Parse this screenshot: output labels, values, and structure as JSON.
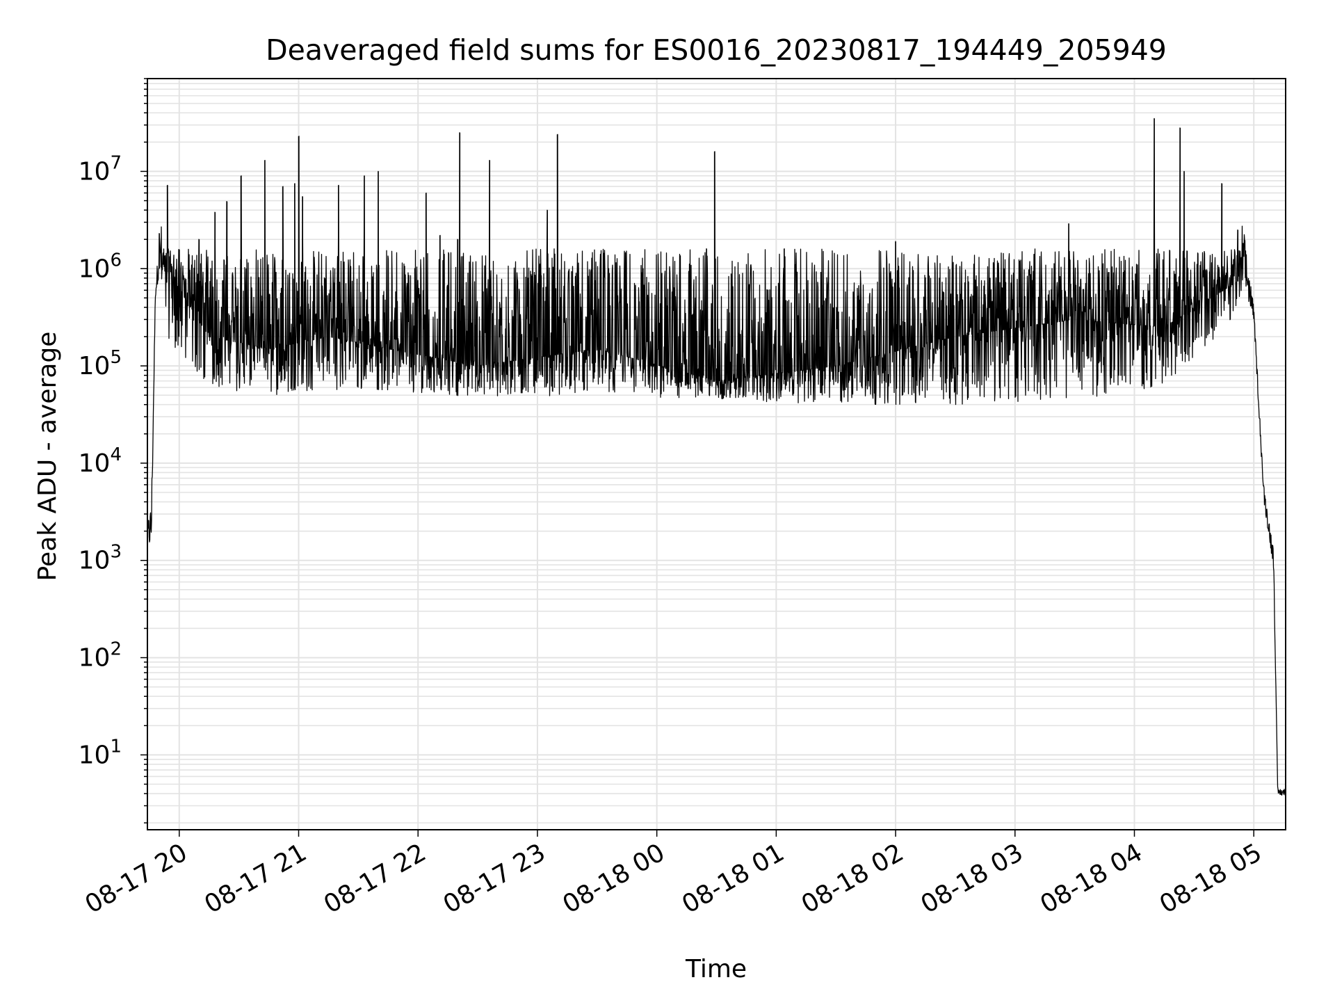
{
  "chart_data": {
    "type": "line",
    "title": "Deaveraged field sums for ES0016_20230817_194449_205949",
    "xlabel": "Time",
    "ylabel": "Peak ADU - average",
    "y_scale": "log",
    "grid": true,
    "ylim": [
      1.7,
      90000000
    ],
    "xlim": [
      "2023-08-17 19:44",
      "2023-08-18 05:16"
    ],
    "x_ticks": [
      "08-17 20",
      "08-17 21",
      "08-17 22",
      "08-17 23",
      "08-18 00",
      "08-18 01",
      "08-18 02",
      "08-18 03",
      "08-18 04",
      "08-18 05"
    ],
    "y_ticks": [
      {
        "base": "10",
        "exp": "1"
      },
      {
        "base": "10",
        "exp": "2"
      },
      {
        "base": "10",
        "exp": "3"
      },
      {
        "base": "10",
        "exp": "4"
      },
      {
        "base": "10",
        "exp": "5"
      },
      {
        "base": "10",
        "exp": "6"
      },
      {
        "base": "10",
        "exp": "7"
      }
    ],
    "series": [
      {
        "color": "#000000",
        "envelope": [
          {
            "x": "2023-08-17 19:44",
            "baseline": 1500,
            "floor": 1300,
            "peak": 2500
          },
          {
            "x": "2023-08-17 19:46",
            "baseline": 3000,
            "floor": 1300,
            "peak": 4000
          },
          {
            "x": "2023-08-17 19:48",
            "baseline": 500000,
            "floor": 500000,
            "peak": 600000
          },
          {
            "x": "2023-08-17 19:50",
            "baseline": 1000000,
            "floor": 900000,
            "peak": 2300000
          },
          {
            "x": "2023-08-17 19:55",
            "baseline": 900000,
            "floor": 180000,
            "peak": 7200000
          },
          {
            "x": "2023-08-17 20:15",
            "baseline": 200000,
            "floor": 60000,
            "peak": 5000000
          },
          {
            "x": "2023-08-17 20:45",
            "baseline": 150000,
            "floor": 50000,
            "peak": 13000000
          },
          {
            "x": "2023-08-17 21:15",
            "baseline": 200000,
            "floor": 55000,
            "peak": 7000000
          },
          {
            "x": "2023-08-17 21:45",
            "baseline": 150000,
            "floor": 55000,
            "peak": 9000000
          },
          {
            "x": "2023-08-17 22:30",
            "baseline": 100000,
            "floor": 48000,
            "peak": 13000000
          },
          {
            "x": "2023-08-17 23:30",
            "baseline": 150000,
            "floor": 50000,
            "peak": 1500000
          },
          {
            "x": "2023-08-18 00:30",
            "baseline": 70000,
            "floor": 45000,
            "peak": 16000000
          },
          {
            "x": "2023-08-18 01:30",
            "baseline": 100000,
            "floor": 40000,
            "peak": 1600000
          },
          {
            "x": "2023-08-18 02:30",
            "baseline": 200000,
            "floor": 40000,
            "peak": 1500000
          },
          {
            "x": "2023-08-18 03:30",
            "baseline": 300000,
            "floor": 45000,
            "peak": 2900000
          },
          {
            "x": "2023-08-18 04:15",
            "baseline": 250000,
            "floor": 60000,
            "peak": 35000000
          },
          {
            "x": "2023-08-18 04:50",
            "baseline": 700000,
            "floor": 300000,
            "peak": 7500000
          },
          {
            "x": "2023-08-18 04:55",
            "baseline": 800000,
            "floor": 600000,
            "peak": 2500000
          },
          {
            "x": "2023-08-18 05:00",
            "baseline": 350000,
            "floor": 300000,
            "peak": 400000
          },
          {
            "x": "2023-08-18 05:05",
            "baseline": 5000,
            "floor": 4000,
            "peak": 6000
          },
          {
            "x": "2023-08-18 05:10",
            "baseline": 1000,
            "floor": 800,
            "peak": 1300
          },
          {
            "x": "2023-08-18 05:12",
            "baseline": 4,
            "floor": 3.8,
            "peak": 4.5
          },
          {
            "x": "2023-08-18 05:16",
            "baseline": 4,
            "floor": 3.8,
            "peak": 4.5
          }
        ],
        "spikes": [
          {
            "x": "2023-08-17 19:50",
            "y": 2300000
          },
          {
            "x": "2023-08-17 19:54",
            "y": 7200000
          },
          {
            "x": "2023-08-17 20:10",
            "y": 2000000
          },
          {
            "x": "2023-08-17 20:18",
            "y": 3800000
          },
          {
            "x": "2023-08-17 20:24",
            "y": 4900000
          },
          {
            "x": "2023-08-17 20:31",
            "y": 9000000
          },
          {
            "x": "2023-08-17 20:43",
            "y": 13000000
          },
          {
            "x": "2023-08-17 20:52",
            "y": 7000000
          },
          {
            "x": "2023-08-17 20:58",
            "y": 7500000
          },
          {
            "x": "2023-08-17 21:00",
            "y": 23000000
          },
          {
            "x": "2023-08-17 21:02",
            "y": 5500000
          },
          {
            "x": "2023-08-17 21:20",
            "y": 7200000
          },
          {
            "x": "2023-08-17 21:33",
            "y": 9000000
          },
          {
            "x": "2023-08-17 21:40",
            "y": 10000000
          },
          {
            "x": "2023-08-17 22:04",
            "y": 6000000
          },
          {
            "x": "2023-08-17 22:11",
            "y": 2200000
          },
          {
            "x": "2023-08-17 22:20",
            "y": 2000000
          },
          {
            "x": "2023-08-17 22:21",
            "y": 25000000
          },
          {
            "x": "2023-08-17 22:36",
            "y": 13000000
          },
          {
            "x": "2023-08-17 23:05",
            "y": 4000000
          },
          {
            "x": "2023-08-17 23:10",
            "y": 24000000
          },
          {
            "x": "2023-08-18 00:25",
            "y": 1600000
          },
          {
            "x": "2023-08-18 00:29",
            "y": 16000000
          },
          {
            "x": "2023-08-18 01:04",
            "y": 1600000
          },
          {
            "x": "2023-08-18 02:00",
            "y": 1900000
          },
          {
            "x": "2023-08-18 03:27",
            "y": 2900000
          },
          {
            "x": "2023-08-18 04:10",
            "y": 35000000
          },
          {
            "x": "2023-08-18 04:23",
            "y": 28000000
          },
          {
            "x": "2023-08-18 04:25",
            "y": 10000000
          },
          {
            "x": "2023-08-18 04:44",
            "y": 7500000
          },
          {
            "x": "2023-08-18 04:52",
            "y": 2500000
          }
        ]
      }
    ]
  }
}
